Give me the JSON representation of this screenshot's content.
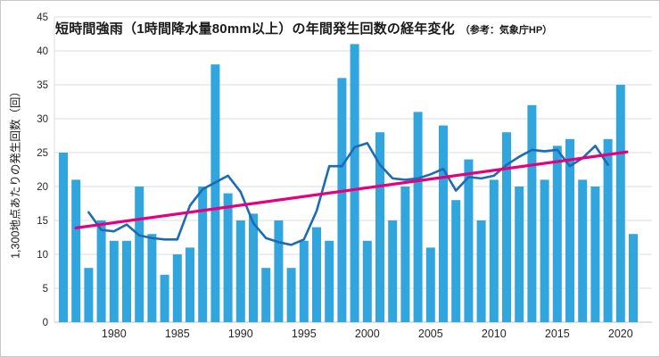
{
  "title": {
    "main": "短時間強雨（1時間降水量80mm以上）の年間発生回数の経年変化",
    "note": "（参考：気象庁HP）"
  },
  "y_axis": {
    "label": "1,300地点あたりの発生回数（回）",
    "min": 0,
    "max": 45,
    "step": 5
  },
  "x_axis": {
    "tick_years": [
      1980,
      1985,
      1990,
      1995,
      2000,
      2005,
      2010,
      2015,
      2020
    ]
  },
  "chart_data": {
    "type": "bar",
    "title": "短時間強雨（1時間降水量80mm以上）の年間発生回数の経年変化（参考：気象庁HP）",
    "xlabel": "",
    "ylabel": "1,300地点あたりの発生回数（回）",
    "ylim": [
      0,
      45
    ],
    "grid": "horizontal",
    "legend": "none",
    "series": [
      {
        "name": "annual-count-bars",
        "type": "bar",
        "start_year": 1976,
        "end_year": 2021,
        "values": [
          25,
          21,
          8,
          15,
          12,
          12,
          20,
          13,
          7,
          10,
          11,
          20,
          38,
          19,
          15,
          16,
          8,
          15,
          8,
          12,
          14,
          12,
          36,
          41,
          12,
          28,
          15,
          20,
          31,
          11,
          29,
          18,
          24,
          15,
          21,
          28,
          20,
          32,
          21,
          26,
          27,
          21,
          20,
          27,
          35,
          13
        ]
      },
      {
        "name": "5-year-moving-average-line",
        "type": "line",
        "start_year": 1978,
        "end_year": 2019,
        "values": [
          16.2,
          13.6,
          13.4,
          14.4,
          12.8,
          12.4,
          12.2,
          12.2,
          17.2,
          19.6,
          20.6,
          21.6,
          19.2,
          14.6,
          12.4,
          11.8,
          11.4,
          12.2,
          16.4,
          23.0,
          23.0,
          25.8,
          26.4,
          23.2,
          21.2,
          21.0,
          21.2,
          21.8,
          22.6,
          19.4,
          21.4,
          21.2,
          21.6,
          23.2,
          24.4,
          25.4,
          25.2,
          25.4,
          23.0,
          24.2,
          26.0,
          23.2
        ]
      },
      {
        "name": "linear-trend-line",
        "type": "trend",
        "points": [
          {
            "year": 1977.0,
            "value": 13.9
          },
          {
            "year": 2020.5,
            "value": 25.1
          }
        ]
      }
    ]
  },
  "colors": {
    "bar": "#31a5de",
    "ma_line": "#1b6cb5",
    "trend_line": "#e4007f",
    "gridline": "#dcdcdc",
    "axis_line": "#c2c2c2",
    "tick_text": "#262626"
  }
}
